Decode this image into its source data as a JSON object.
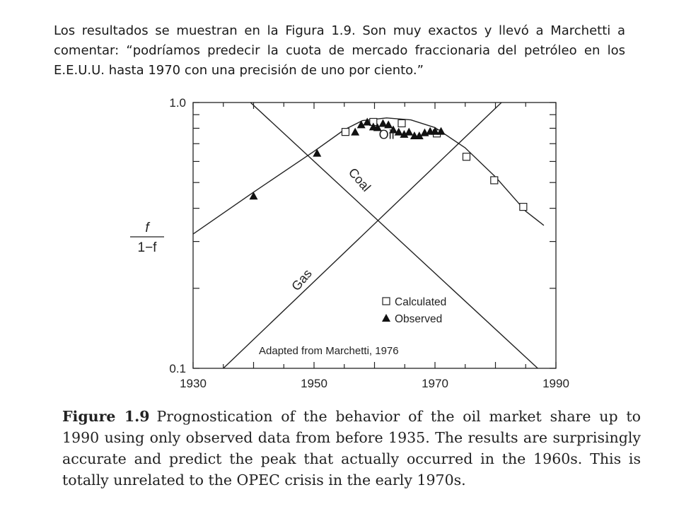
{
  "intro_text": "Los resultados se muestran en la Figura 1.9. Son muy exactos y llevó a  Marchetti a comentar: “podríamos predecir la cuota de mercado fraccionaria del petróleo en los E.E.U.U. hasta 1970 con una precisión de uno por ciento.”",
  "figure": {
    "label": "Figure 1.9",
    "caption": "Prognostication of the behavior of the oil market share up to 1990 using only observed data from before 1935. The results are surprisingly accurate and predict the peak that actually occurred in the 1960s. This is totally unrelated to the OPEC crisis in the early 1970s."
  },
  "chart_data": {
    "type": "line",
    "ylabel_numerator": "f",
    "ylabel_denominator": "1−f",
    "y_scale": "log",
    "xlim": [
      1930,
      1990
    ],
    "ylim": [
      0.1,
      1.0
    ],
    "x_ticks": [
      "1930",
      "1950",
      "1970",
      "1990"
    ],
    "y_ticks": [
      "0.1",
      "1.0"
    ],
    "annotation": "Adapted from Marchetti, 1976",
    "lines": [
      {
        "label": "Coal",
        "points": [
          [
            1939.5,
            1.0
          ],
          [
            1987,
            0.1
          ]
        ]
      },
      {
        "label": "Gas",
        "points": [
          [
            1935,
            0.1
          ],
          [
            1981,
            1.0
          ]
        ]
      },
      {
        "label": "Oil",
        "points": [
          [
            1930,
            0.32
          ],
          [
            1940,
            0.46
          ],
          [
            1950,
            0.655
          ],
          [
            1955,
            0.79
          ],
          [
            1958,
            0.855
          ],
          [
            1962,
            0.875
          ],
          [
            1966,
            0.86
          ],
          [
            1970,
            0.805
          ],
          [
            1975,
            0.675
          ],
          [
            1980,
            0.525
          ],
          [
            1985,
            0.39
          ],
          [
            1988,
            0.345
          ]
        ]
      }
    ],
    "series": [
      {
        "name": "Calculated",
        "marker": "open-square",
        "x": [
          1955.2,
          1959.8,
          1964.5,
          1970.3,
          1975.2,
          1979.8,
          1984.6
        ],
        "y": [
          0.775,
          0.845,
          0.835,
          0.765,
          0.625,
          0.51,
          0.405
        ]
      },
      {
        "name": "Observed",
        "marker": "filled-triangle",
        "x": [
          1940,
          1950.5,
          1956.8,
          1957.8,
          1958.8,
          1959.8,
          1960.5,
          1961.4,
          1962.3,
          1963.1,
          1964.0,
          1964.9,
          1965.7,
          1966.6,
          1967.4,
          1968.3,
          1969.2,
          1970.0,
          1971.0
        ],
        "y": [
          0.445,
          0.645,
          0.775,
          0.825,
          0.845,
          0.81,
          0.805,
          0.835,
          0.825,
          0.79,
          0.775,
          0.76,
          0.775,
          0.75,
          0.75,
          0.77,
          0.78,
          0.78,
          0.78
        ]
      }
    ],
    "legend": {
      "position": "bottom-right",
      "entries": [
        "Calculated",
        "Observed"
      ]
    }
  }
}
